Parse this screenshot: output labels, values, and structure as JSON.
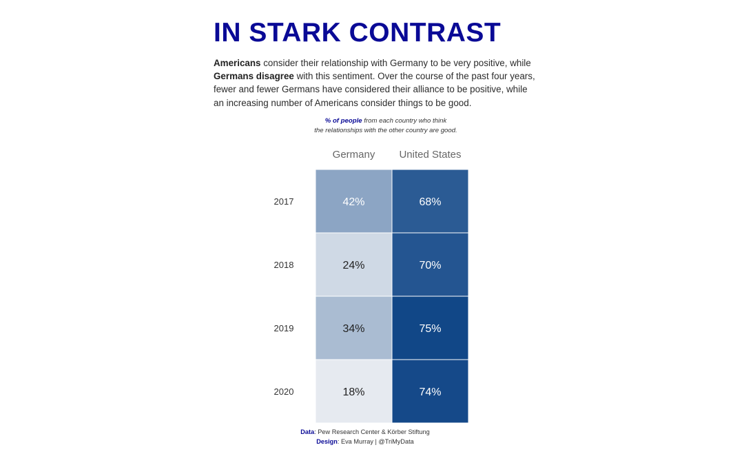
{
  "title": "IN STARK CONTRAST",
  "intro": {
    "bold1": "Americans",
    "text1": " consider their relationship with Germany to be very positive, while ",
    "bold2": "Germans disagree",
    "text2": " with this sentiment. Over the course of the past four years, fewer and fewer Germans have considered their alliance to be positive, while an increasing number of Americans consider things to be good."
  },
  "subtitle": {
    "emph": "% of people",
    "line1_rest": " from each country who think",
    "line2": "the relationships with the other country are good."
  },
  "footer": {
    "data_label": "Data",
    "data_text": ": Pew Research Center & Körber Stiftung",
    "design_label": "Design",
    "design_text": ": Eva Murray | @TriMyData"
  },
  "chart_data": {
    "type": "heatmap",
    "columns": [
      "Germany",
      "United States"
    ],
    "rows": [
      "2017",
      "2018",
      "2019",
      "2020"
    ],
    "values": [
      [
        42,
        68
      ],
      [
        24,
        70
      ],
      [
        34,
        75
      ],
      [
        18,
        74
      ]
    ],
    "value_format": "{v}%",
    "color_scale": {
      "low": "#f1f3f5",
      "high": "#063e82"
    },
    "value_range": [
      15,
      78
    ]
  }
}
